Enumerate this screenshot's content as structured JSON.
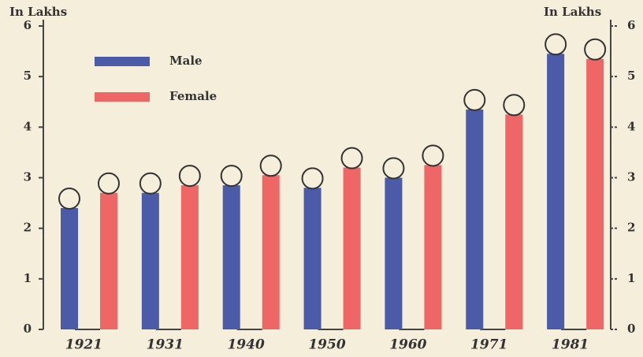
{
  "chart_data": {
    "type": "bar",
    "y_label": "In Lakhs",
    "y2_label": "In Lakhs",
    "categories": [
      "1921",
      "1931",
      "1940",
      "1950",
      "1960",
      "1971",
      "1981"
    ],
    "series": [
      {
        "name": "Male",
        "color": "#4b5ba8",
        "values": [
          2.4,
          2.7,
          2.85,
          2.8,
          3.0,
          4.35,
          5.45
        ]
      },
      {
        "name": "Female",
        "color": "#ef6666",
        "values": [
          2.7,
          2.85,
          3.05,
          3.2,
          3.25,
          4.25,
          5.35
        ]
      }
    ],
    "ylim": [
      0,
      6
    ],
    "yticks": [
      0,
      1,
      2,
      3,
      4,
      5,
      6
    ],
    "y2lim": [
      0,
      6
    ],
    "y2ticks": [
      0,
      1,
      2,
      3,
      4,
      5,
      6
    ],
    "grid": false,
    "legend": "top-left"
  }
}
